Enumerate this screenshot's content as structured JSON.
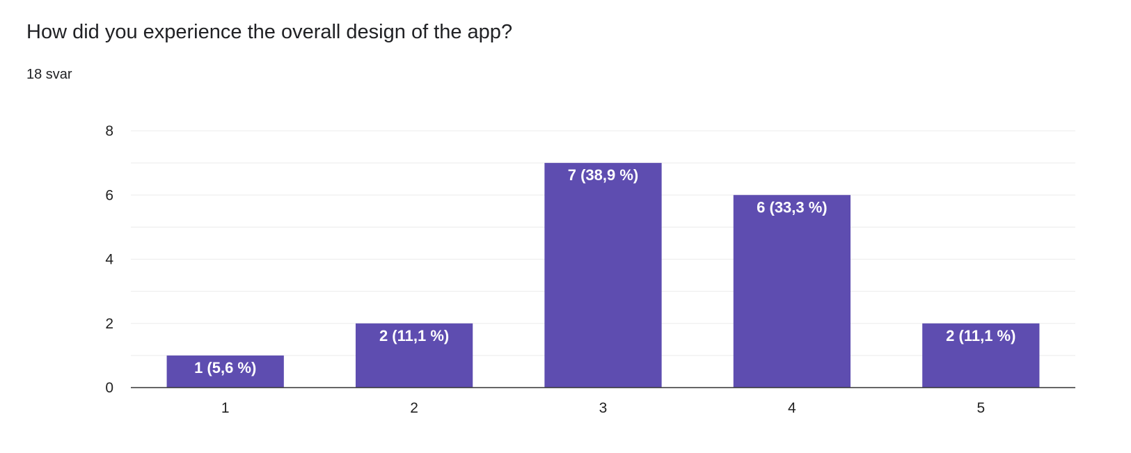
{
  "question": {
    "title": "How did you experience the overall design of the app?",
    "response_count": "18 svar"
  },
  "colors": {
    "bar": "#5e4db0",
    "gridline": "#ebebeb",
    "axis": "#333333",
    "text": "#202124"
  },
  "chart_data": {
    "type": "bar",
    "categories": [
      "1",
      "2",
      "3",
      "4",
      "5"
    ],
    "values": [
      1,
      2,
      7,
      6,
      2
    ],
    "data_labels": [
      "1 (5,6 %)",
      "2 (11,1 %)",
      "7 (38,9 %)",
      "6 (33,3 %)",
      "2 (11,1 %)"
    ],
    "title": "",
    "xlabel": "",
    "ylabel": "",
    "ylim": [
      0,
      8
    ],
    "y_ticks": [
      0,
      2,
      4,
      6,
      8
    ],
    "grid": true,
    "legend": "none"
  }
}
